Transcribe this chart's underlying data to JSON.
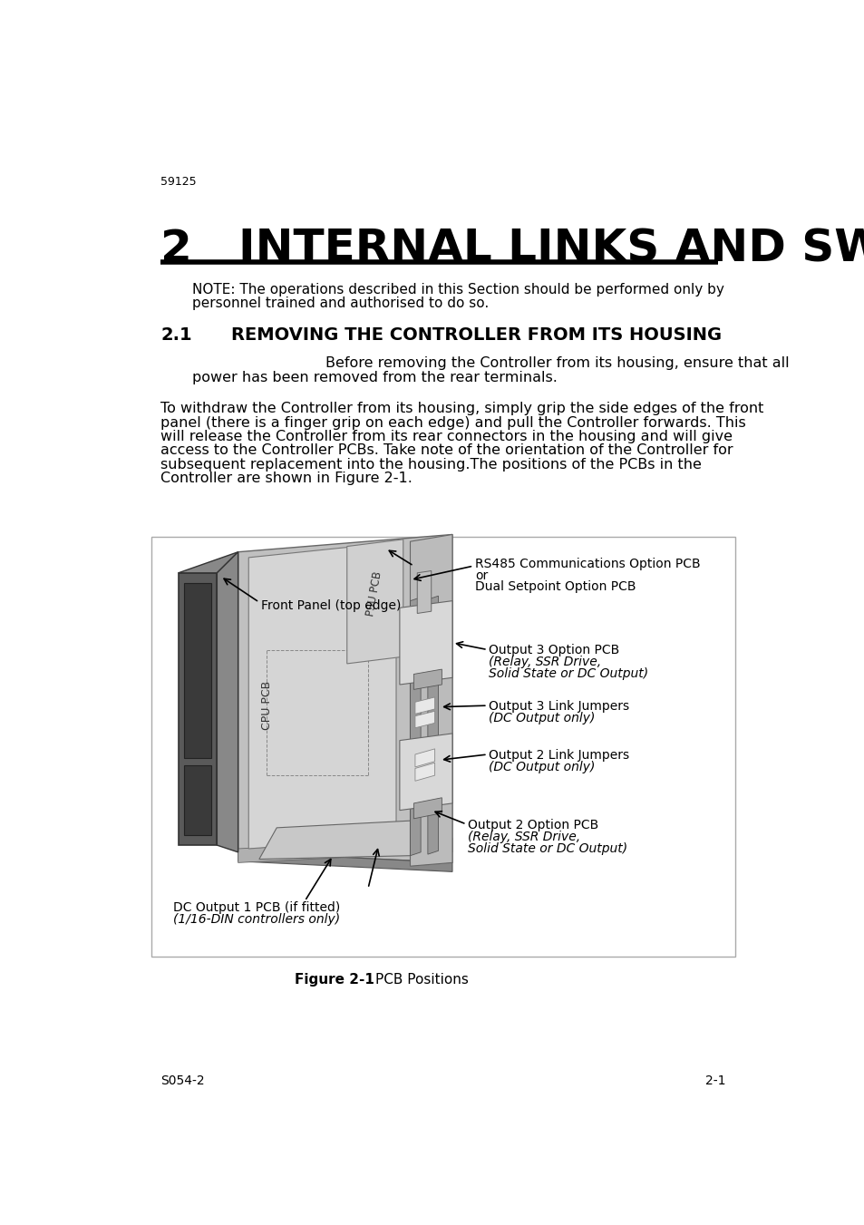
{
  "page_number_top": "59125",
  "chapter_number": "2",
  "chapter_title": "INTERNAL LINKS AND SWITCHES",
  "note_text_line1": "NOTE: The operations described in this Section should be performed only by",
  "note_text_line2": "personnel trained and authorised to do so.",
  "section_number": "2.1",
  "section_title": "REMOVING THE CONTROLLER FROM ITS HOUSING",
  "warning_line1": "Before removing the Controller from its housing, ensure that all",
  "warning_line2": "power has been removed from the rear terminals.",
  "body_lines": [
    "To withdraw the Controller from its housing, simply grip the side edges of the front",
    "panel (there is a finger grip on each edge) and pull the Controller forwards. This",
    "will release the Controller from its rear connectors in the housing and will give",
    "access to the Controller PCBs. Take note of the orientation of the Controller for",
    "subsequent replacement into the housing.The positions of the PCBs in the",
    "Controller are shown in Figure 2-1."
  ],
  "figure_caption_left": "Figure 2-1",
  "figure_caption_right": "PCB Positions",
  "footer_left": "S054-2",
  "footer_right": "2-1",
  "bg_color": "#ffffff",
  "text_color": "#000000",
  "label_rs485_line1": "RS485 Communications Option PCB",
  "label_rs485_line2": "or",
  "label_rs485_line3": "Dual Setpoint Option PCB",
  "label_out3_pcb_line1": "Output 3 Option PCB",
  "label_out3_pcb_line2": "(Relay, SSR Drive,",
  "label_out3_pcb_line3": "Solid State or DC Output)",
  "label_out3_link_line1": "Output 3 Link Jumpers",
  "label_out3_link_line2": "(DC Output only)",
  "label_out2_link_line1": "Output 2 Link Jumpers",
  "label_out2_link_line2": "(DC Output only)",
  "label_out2_pcb_line1": "Output 2 Option PCB",
  "label_out2_pcb_line2": "(Relay, SSR Drive,",
  "label_out2_pcb_line3": "Solid State or DC Output)",
  "label_dc_line1": "DC Output 1 PCB (if fitted)",
  "label_dc_line2": "(1/16-DIN controllers only)",
  "label_front_panel": "Front Panel (top edge)",
  "label_cpu": "CPU PCB",
  "label_psu": "PSU PCB"
}
